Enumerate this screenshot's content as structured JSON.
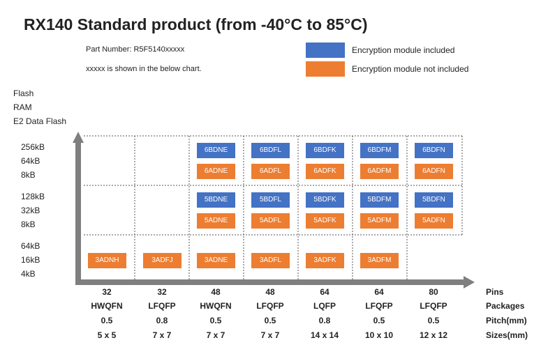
{
  "title": "RX140  Standard product (from -40°C to 85°C)",
  "part_number": "Part Number: R5F5140xxxxx",
  "note": "xxxxx is shown in the below chart.",
  "legend": [
    {
      "label": "Encryption module included",
      "color": "#4472c4"
    },
    {
      "label": "Encryption module not included",
      "color": "#ed7d31"
    }
  ],
  "y_header": [
    "Flash",
    "RAM",
    "E2 Data Flash"
  ],
  "rows": [
    {
      "labels": [
        "256kB",
        "64kB",
        "8kB"
      ]
    },
    {
      "labels": [
        "128kB",
        "32kB",
        "8kB"
      ]
    },
    {
      "labels": [
        "64kB",
        "16kB",
        "4kB"
      ]
    }
  ],
  "columns": [
    {
      "pins": "32",
      "package": "HWQFN",
      "pitch": "0.5",
      "size": "5 x 5",
      "cells": [
        null,
        null,
        {
          "enc": null,
          "noenc": "3ADNH"
        }
      ]
    },
    {
      "pins": "32",
      "package": "LFQFP",
      "pitch": "0.8",
      "size": "7 x 7",
      "cells": [
        null,
        null,
        {
          "enc": null,
          "noenc": "3ADFJ"
        }
      ]
    },
    {
      "pins": "48",
      "package": "HWQFN",
      "pitch": "0.5",
      "size": "7 x 7",
      "cells": [
        {
          "enc": "6BDNE",
          "noenc": "6ADNE"
        },
        {
          "enc": "5BDNE",
          "noenc": "5ADNE"
        },
        {
          "enc": null,
          "noenc": "3ADNE"
        }
      ]
    },
    {
      "pins": "48",
      "package": "LFQFP",
      "pitch": "0.5",
      "size": "7 x 7",
      "cells": [
        {
          "enc": "6BDFL",
          "noenc": "6ADFL"
        },
        {
          "enc": "5BDFL",
          "noenc": "5ADFL"
        },
        {
          "enc": null,
          "noenc": "3ADFL"
        }
      ]
    },
    {
      "pins": "64",
      "package": "LQFP",
      "pitch": "0.8",
      "size": "14 x 14",
      "cells": [
        {
          "enc": "6BDFK",
          "noenc": "6ADFK"
        },
        {
          "enc": "5BDFK",
          "noenc": "5ADFK"
        },
        {
          "enc": null,
          "noenc": "3ADFK"
        }
      ]
    },
    {
      "pins": "64",
      "package": "LFQFP",
      "pitch": "0.5",
      "size": "10 x 10",
      "cells": [
        {
          "enc": "6BDFM",
          "noenc": "6ADFM"
        },
        {
          "enc": "5BDFM",
          "noenc": "5ADFM"
        },
        {
          "enc": null,
          "noenc": "3ADFM"
        }
      ]
    },
    {
      "pins": "80",
      "package": "LFQFP",
      "pitch": "0.5",
      "size": "12 x 12",
      "cells": [
        {
          "enc": "6BDFN",
          "noenc": "6ADFN"
        },
        {
          "enc": "5BDFN",
          "noenc": "5ADFN"
        },
        null
      ]
    }
  ],
  "x_axis_labels": [
    "Pins",
    "Packages",
    "Pitch(mm)",
    "Sizes(mm)"
  ]
}
